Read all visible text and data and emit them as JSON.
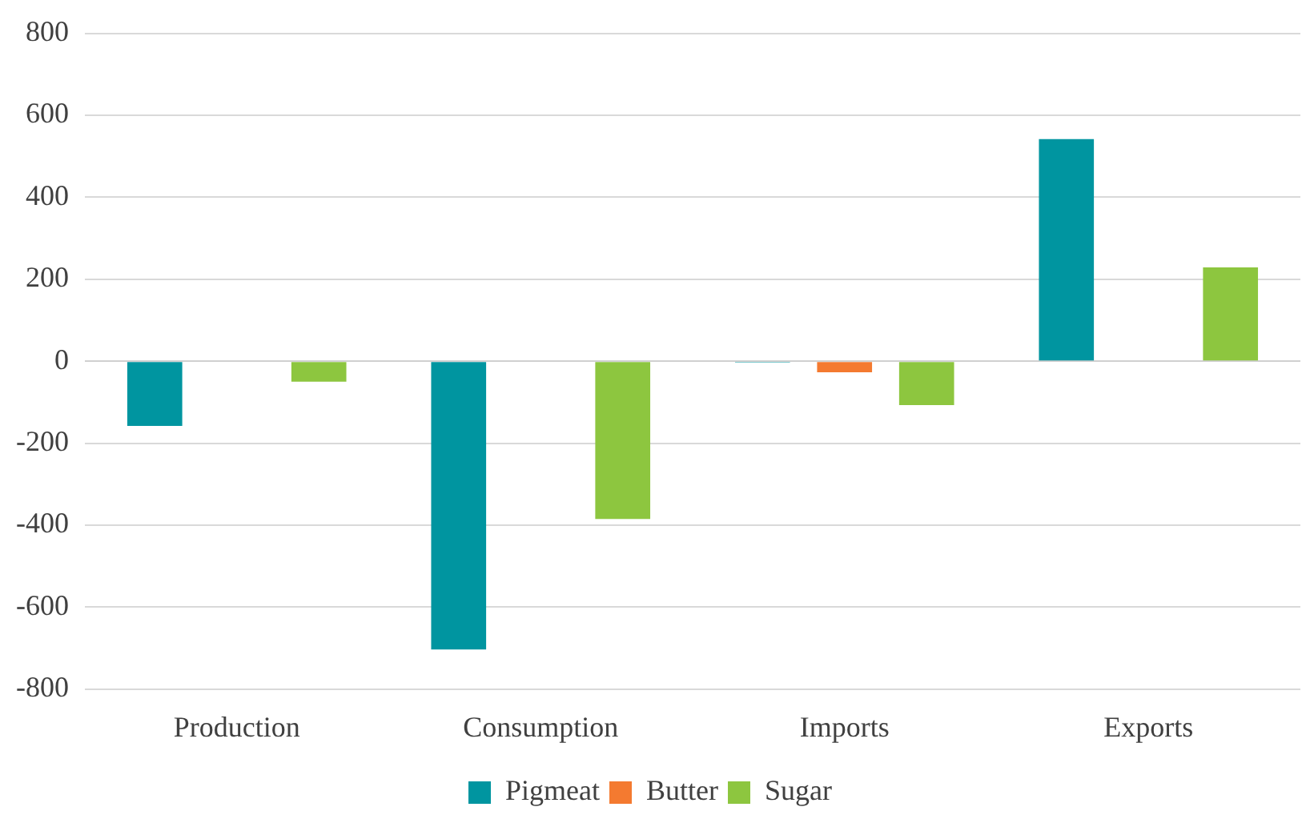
{
  "chart_data": {
    "type": "bar",
    "categories": [
      "Production",
      "Consumption",
      "Imports",
      "Exports"
    ],
    "series": [
      {
        "name": "Pigmeat",
        "color": "#0095a0",
        "values": [
          -158,
          -703,
          -3,
          542
        ]
      },
      {
        "name": "Butter",
        "color": "#f47a30",
        "values": [
          0,
          null,
          -27,
          null
        ]
      },
      {
        "name": "Sugar",
        "color": "#8dc63f",
        "values": [
          -50,
          -385,
          -107,
          229
        ]
      }
    ],
    "ylim": [
      -800,
      800
    ],
    "yticks": [
      -800,
      -600,
      -400,
      -200,
      0,
      200,
      400,
      600,
      800
    ],
    "grid": "y",
    "legend": "bottom"
  }
}
